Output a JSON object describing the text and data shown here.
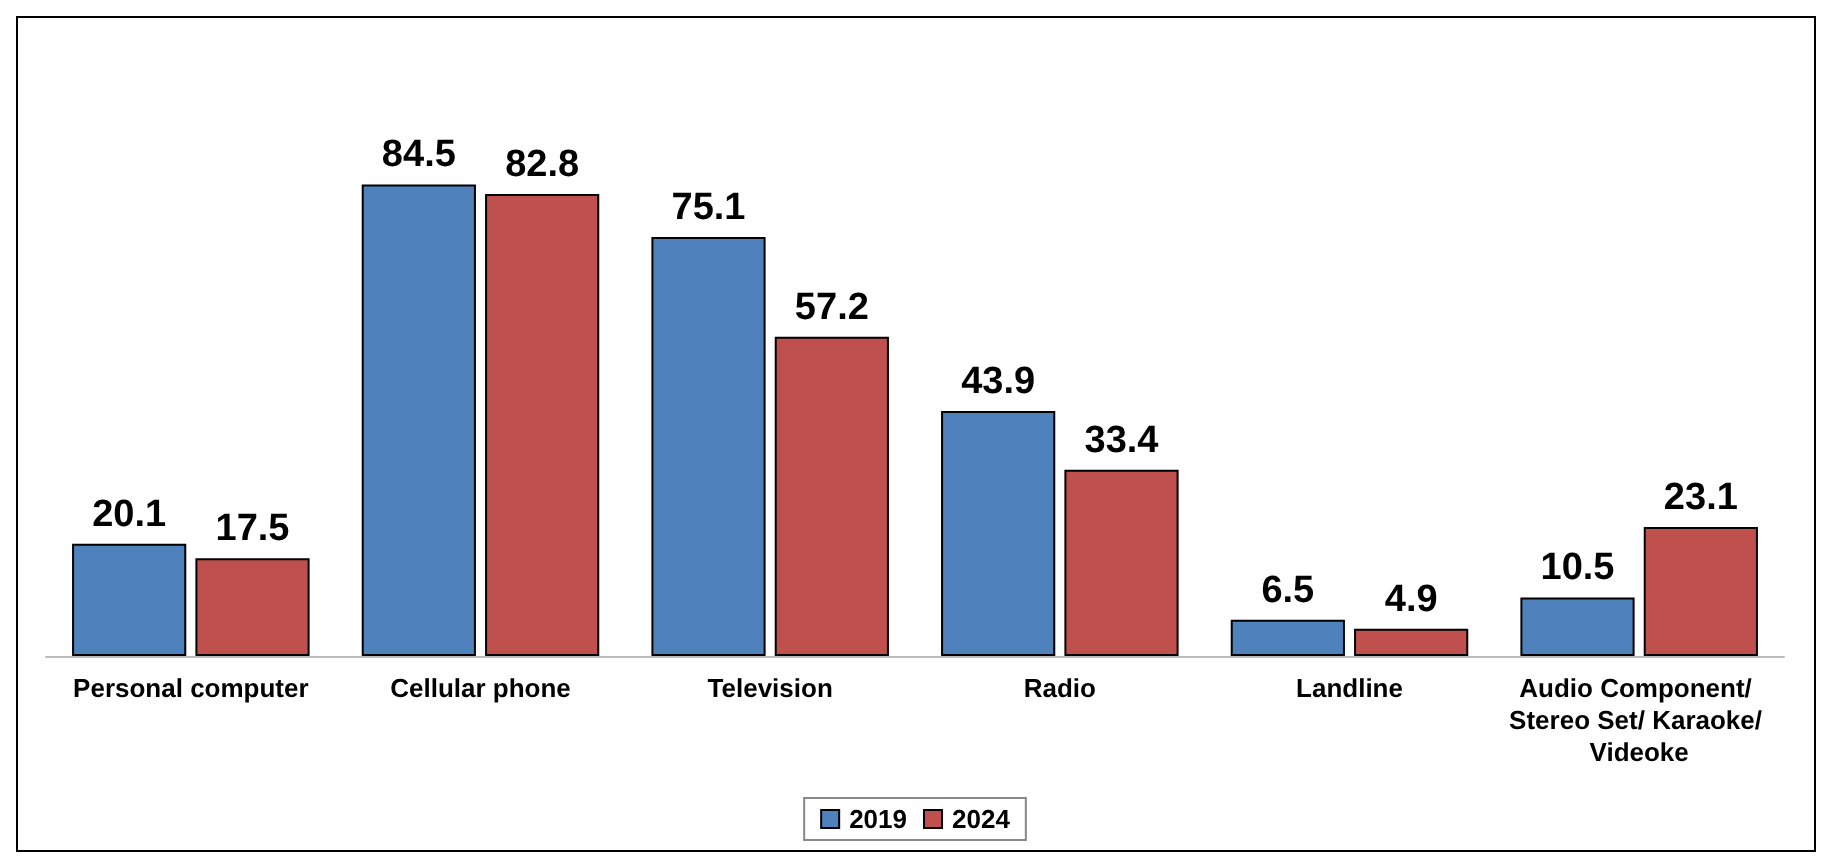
{
  "chart_data": {
    "type": "bar",
    "categories": [
      "Personal computer",
      "Cellular phone",
      "Television",
      "Radio",
      "Landline",
      "Audio Component/ Stereo Set/ Karaoke/ Videoke"
    ],
    "series": [
      {
        "name": "2019",
        "color": "#4f81bd",
        "values": [
          20.1,
          84.5,
          75.1,
          43.9,
          6.5,
          10.5
        ]
      },
      {
        "name": "2024",
        "color": "#c0504d",
        "values": [
          17.5,
          82.8,
          57.2,
          33.4,
          4.9,
          23.1
        ]
      }
    ],
    "data_labels": true,
    "legend": "bottom",
    "grid": false
  }
}
